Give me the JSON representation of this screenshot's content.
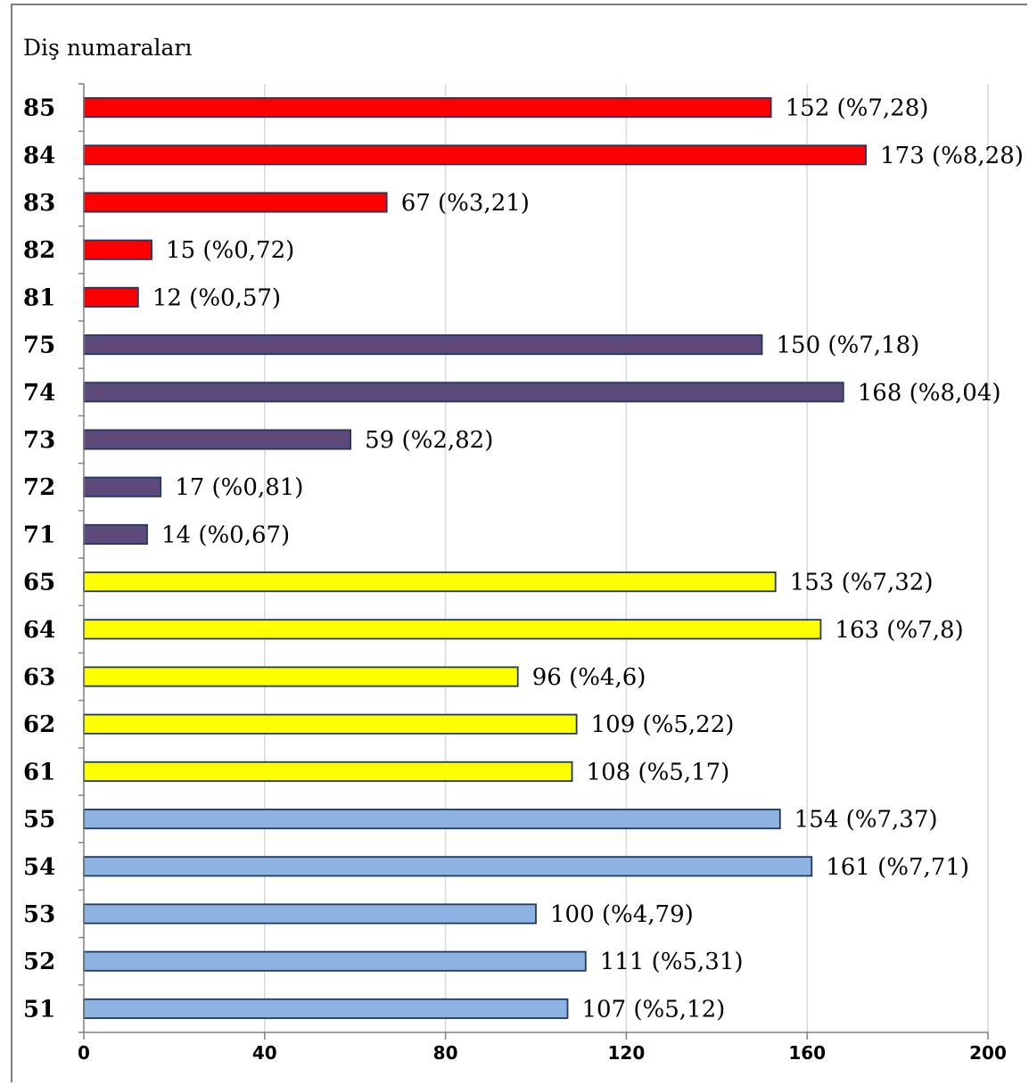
{
  "chart_data": {
    "type": "bar",
    "orientation": "horizontal",
    "ylabel": "Diş numaraları",
    "xlabel": "",
    "xlim": [
      0,
      200
    ],
    "xticks": [
      "0",
      "40",
      "80",
      "120",
      "160",
      "200"
    ],
    "grid": true,
    "legend": "none",
    "categories": [
      "85",
      "84",
      "83",
      "82",
      "81",
      "75",
      "74",
      "73",
      "72",
      "71",
      "65",
      "64",
      "63",
      "62",
      "61",
      "55",
      "54",
      "53",
      "52",
      "51"
    ],
    "values": [
      152,
      173,
      67,
      15,
      12,
      150,
      168,
      59,
      17,
      14,
      153,
      163,
      96,
      109,
      108,
      154,
      161,
      100,
      111,
      107
    ],
    "data_labels": [
      "152 (%7,28)",
      "173 (%8,28)",
      "67 (%3,21)",
      "15 (%0,72)",
      "12 (%0,57)",
      "150 (%7,18)",
      "168 (%8,04)",
      "59 (%2,82)",
      "17 (%0,81)",
      "14 (%0,67)",
      "153 (%7,32)",
      "163 (%7,8)",
      "96 (%4,6)",
      "109 (%5,22)",
      "108 (%5,17)",
      "154 (%7,37)",
      "161 (%7,71)",
      "100 (%4,79)",
      "111 (%5,31)",
      "107 (%5,12)"
    ],
    "bar_colors": [
      "#ff0000",
      "#ff0000",
      "#ff0000",
      "#ff0000",
      "#ff0000",
      "#5e4a7a",
      "#5e4a7a",
      "#5e4a7a",
      "#5e4a7a",
      "#5e4a7a",
      "#ffff00",
      "#ffff00",
      "#ffff00",
      "#ffff00",
      "#ffff00",
      "#8db3e2",
      "#8db3e2",
      "#8db3e2",
      "#8db3e2",
      "#8db3e2"
    ],
    "bar_outline_color": "#1f3864",
    "grid_color": "#d9d9d9"
  }
}
